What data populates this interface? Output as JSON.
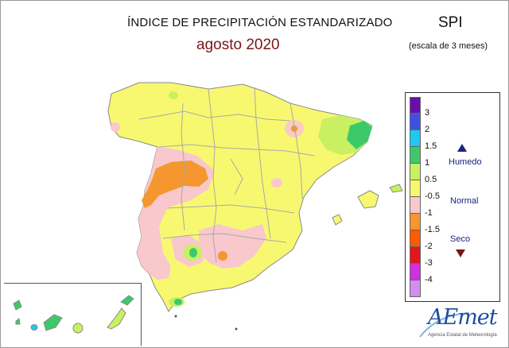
{
  "map": {
    "title": "ÍNDICE DE PRECIPITACIÓN ESTANDARIZADO",
    "period": "agosto 2020",
    "index_name": "SPI",
    "scale_note": "(escala de 3 meses)"
  },
  "legend": {
    "classes": [
      {
        "color": "#6a0dad",
        "label": "3"
      },
      {
        "color": "#3f51e0",
        "label": "2"
      },
      {
        "color": "#1ec8f0",
        "label": "1.5"
      },
      {
        "color": "#3cc96a",
        "label": "1"
      },
      {
        "color": "#c8f060",
        "label": "0.5"
      },
      {
        "color": "#f8f870",
        "label": "-0.5"
      },
      {
        "color": "#f8c8cc",
        "label": "-1"
      },
      {
        "color": "#f5962e",
        "label": "-1.5"
      },
      {
        "color": "#ff5a00",
        "label": "-2"
      },
      {
        "color": "#e6141e",
        "label": "-3"
      },
      {
        "color": "#d030e0",
        "label": "-4"
      },
      {
        "color": "#d48cf0",
        "label": ""
      }
    ],
    "wet_label": "Humedo",
    "normal_label": "Normal",
    "dry_label": "Seco"
  },
  "logo": {
    "brand": "AEmet",
    "agency": "Agencia Estatal de Meteorología"
  }
}
